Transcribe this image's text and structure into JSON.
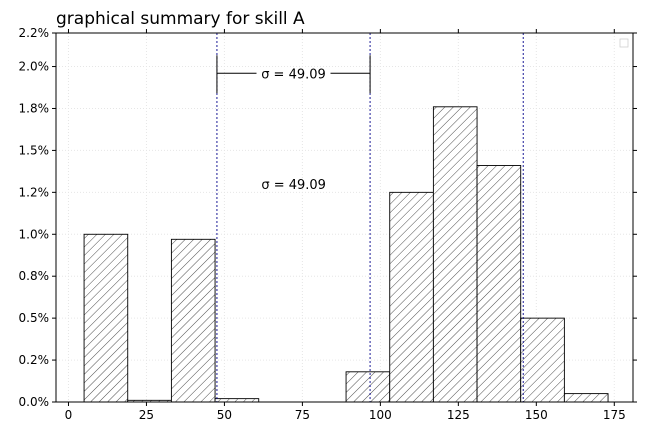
{
  "chart_data": {
    "type": "bar",
    "title": "graphical summary for skill A",
    "xlabel": "",
    "ylabel": "",
    "xlim": [
      -4,
      181
    ],
    "ylim": [
      0,
      0.022
    ],
    "x_ticks": [
      0,
      25,
      50,
      75,
      100,
      125,
      150,
      175
    ],
    "y_ticks": [
      0,
      0.0025,
      0.005,
      0.0075,
      0.01,
      0.0125,
      0.015,
      0.0175,
      0.02,
      0.022
    ],
    "y_tick_labels": [
      "0.0%",
      "0.2%",
      "0.5%",
      "0.8%",
      "1.0%",
      "1.2%",
      "1.5%",
      "1.8%",
      "2.0%",
      "2.2%"
    ],
    "bins": [
      {
        "x0": 5,
        "x1": 19,
        "value": 0.01
      },
      {
        "x0": 19,
        "x1": 33,
        "value": 0.0001
      },
      {
        "x0": 33,
        "x1": 47,
        "value": 0.0097
      },
      {
        "x0": 47,
        "x1": 61,
        "value": 0.0002
      },
      {
        "x0": 61,
        "x1": 75,
        "value": 0
      },
      {
        "x0": 75,
        "x1": 89,
        "value": 0
      },
      {
        "x0": 89,
        "x1": 103,
        "value": 0.0018
      },
      {
        "x0": 103,
        "x1": 117,
        "value": 0.0125
      },
      {
        "x0": 117,
        "x1": 131,
        "value": 0.0176
      },
      {
        "x0": 131,
        "x1": 145,
        "value": 0.0141
      },
      {
        "x0": 145,
        "x1": 159,
        "value": 0.005
      },
      {
        "x0": 159,
        "x1": 173,
        "value": 0.0005
      }
    ],
    "vlines": [
      47.6,
      96.7,
      145.8
    ],
    "bar_fill": "hatched",
    "vline_color": "#00008b",
    "grid": true,
    "annotations": {
      "sigma_bracket": {
        "from": 47.6,
        "to": 96.7,
        "y": 0.0196,
        "label": "σ = 49.09"
      },
      "sigma_text": {
        "x": 72.2,
        "y": 0.013,
        "label": "σ = 49.09"
      }
    }
  }
}
